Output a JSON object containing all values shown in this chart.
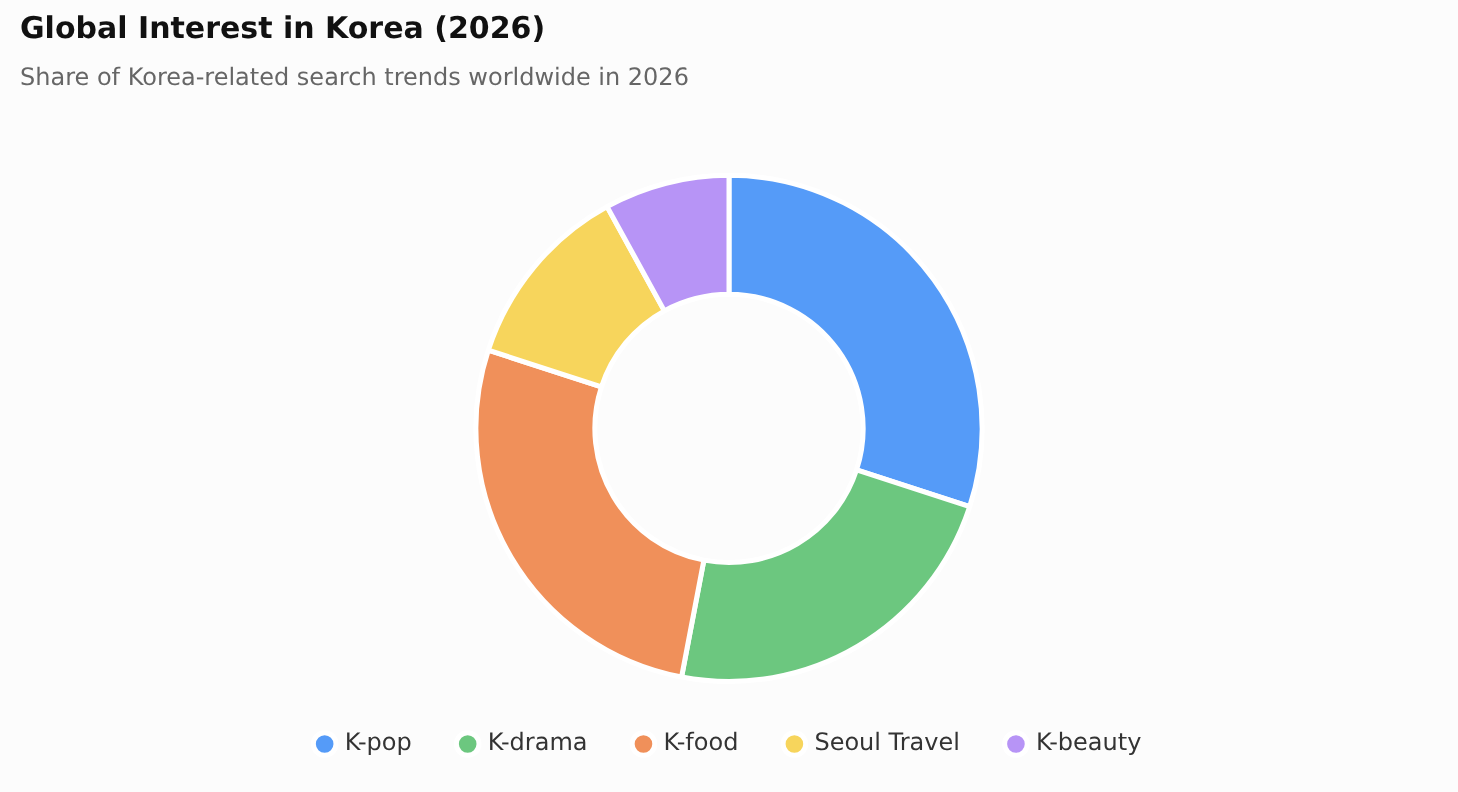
{
  "chart_data": {
    "type": "donut",
    "title": "Global Interest in Korea (2026)",
    "subtitle": "Share of Korea-related search trends worldwide in 2026",
    "categories": [
      "K-pop",
      "K-drama",
      "K-food",
      "Seoul Travel",
      "K-beauty"
    ],
    "values": [
      30,
      23,
      27,
      12,
      8
    ],
    "colors": [
      "#559bf8",
      "#6cc77f",
      "#f0905a",
      "#f7d55c",
      "#b794f6"
    ],
    "legend": "bottom"
  }
}
